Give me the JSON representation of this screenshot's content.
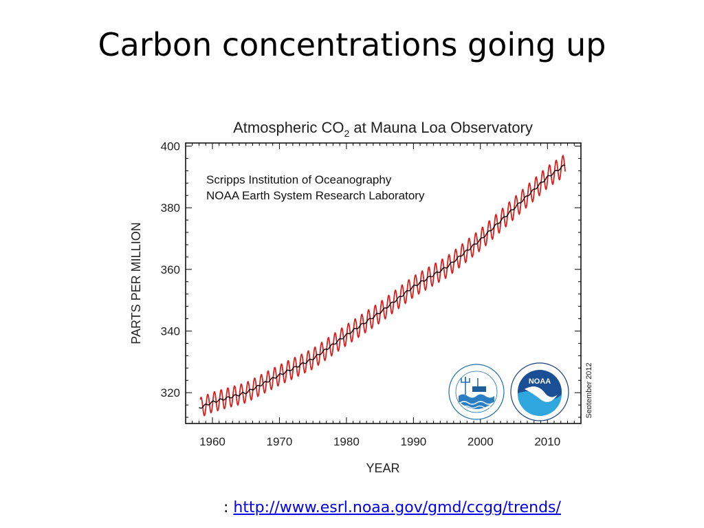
{
  "slide": {
    "title": "Carbon concentrations going up",
    "source_prefix": ": ",
    "source_link_text": "http://www.esrl.noaa.gov/gmd/ccgg/trends/",
    "source_link_href": "http://www.esrl.noaa.gov/gmd/ccgg/trends/"
  },
  "chart_data": {
    "type": "line",
    "title_main": "Atmospheric CO",
    "title_sub": "2",
    "title_rest": " at Mauna Loa Observatory",
    "subtitle_lines": [
      "Scripps Institution of Oceanography",
      "NOAA Earth System Research Laboratory"
    ],
    "xlabel": "YEAR",
    "ylabel": "PARTS PER MILLION",
    "date_stamp": "September 2012",
    "xlim": [
      1956,
      2015
    ],
    "ylim": [
      310,
      401
    ],
    "xticks": [
      1960,
      1970,
      1980,
      1990,
      2000,
      2010
    ],
    "yticks": [
      320,
      340,
      360,
      380,
      400
    ],
    "grid": false,
    "series": [
      {
        "role": "monthly mean",
        "color": "#d62020",
        "seasonal_amplitude_ppm": 3.2
      },
      {
        "role": "seasonally corrected trend",
        "color": "#000000"
      }
    ],
    "trend": {
      "x": [
        1958,
        1960,
        1965,
        1970,
        1975,
        1980,
        1985,
        1990,
        1995,
        2000,
        2005,
        2010,
        2012.7
      ],
      "y": [
        315,
        316.9,
        320,
        325.7,
        331,
        338.7,
        346,
        354.4,
        360.8,
        369.6,
        379.8,
        389.9,
        394
      ]
    },
    "logos": [
      "scripps-logo",
      "noaa-logo"
    ]
  }
}
